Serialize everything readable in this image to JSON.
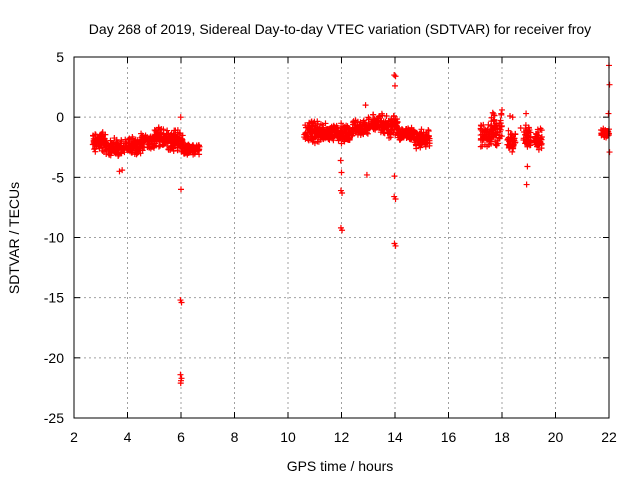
{
  "chart_data": {
    "type": "scatter",
    "title": "Day 268 of 2019, Sidereal Day-to-day VTEC variation (SDTVAR) for receiver froy",
    "xlabel": "GPS time / hours",
    "ylabel": "SDTVAR / TECUs",
    "xlim": [
      2,
      22
    ],
    "ylim": [
      -25,
      5
    ],
    "xticks": [
      "2",
      "4",
      "6",
      "8",
      "10",
      "12",
      "14",
      "16",
      "18",
      "20",
      "22"
    ],
    "yticks": [
      "5",
      "0",
      "-5",
      "-10",
      "-15",
      "-20",
      "-25"
    ],
    "grid": true,
    "marker": "+",
    "colors": {
      "points": "#ff0000",
      "grid": "#a0a0a0",
      "axes": "#000000"
    },
    "clusters": [
      {
        "x": [
          2.7,
          3.2
        ],
        "y": [
          -3.0,
          -1.2
        ]
      },
      {
        "x": [
          3.2,
          3.9
        ],
        "y": [
          -3.4,
          -1.7
        ]
      },
      {
        "x": [
          3.9,
          4.5
        ],
        "y": [
          -3.2,
          -1.6
        ]
      },
      {
        "x": [
          4.5,
          5.0
        ],
        "y": [
          -2.8,
          -1.2
        ]
      },
      {
        "x": [
          5.0,
          5.5
        ],
        "y": [
          -2.6,
          -0.7
        ]
      },
      {
        "x": [
          5.5,
          6.1
        ],
        "y": [
          -3.0,
          -1.0
        ]
      },
      {
        "x": [
          6.1,
          6.7
        ],
        "y": [
          -3.2,
          -2.2
        ]
      },
      {
        "x": [
          10.6,
          11.2
        ],
        "y": [
          -2.3,
          -0.1
        ]
      },
      {
        "x": [
          11.2,
          11.8
        ],
        "y": [
          -2.0,
          -0.5
        ]
      },
      {
        "x": [
          11.8,
          12.4
        ],
        "y": [
          -2.3,
          -0.3
        ]
      },
      {
        "x": [
          12.4,
          13.0
        ],
        "y": [
          -1.6,
          -0.2
        ]
      },
      {
        "x": [
          13.0,
          13.6
        ],
        "y": [
          -1.5,
          0.3
        ]
      },
      {
        "x": [
          13.6,
          14.1
        ],
        "y": [
          -1.8,
          0.3
        ]
      },
      {
        "x": [
          14.1,
          14.7
        ],
        "y": [
          -2.0,
          -0.8
        ]
      },
      {
        "x": [
          14.7,
          15.3
        ],
        "y": [
          -2.7,
          -0.9
        ]
      },
      {
        "x": [
          17.2,
          17.6
        ],
        "y": [
          -2.6,
          -0.4
        ]
      },
      {
        "x": [
          17.6,
          18.0
        ],
        "y": [
          -2.5,
          0.6
        ]
      },
      {
        "x": [
          18.2,
          18.5
        ],
        "y": [
          -3.0,
          -1.0
        ]
      },
      {
        "x": [
          18.8,
          19.1
        ],
        "y": [
          -2.8,
          -0.6
        ]
      },
      {
        "x": [
          19.2,
          19.5
        ],
        "y": [
          -3.0,
          -0.8
        ]
      },
      {
        "x": [
          21.7,
          22.0
        ],
        "y": [
          -1.8,
          -0.9
        ]
      }
    ],
    "points": [
      [
        3.7,
        -4.5
      ],
      [
        3.8,
        -4.4
      ],
      [
        5.99,
        0.0
      ],
      [
        6.0,
        -6.0
      ],
      [
        5.98,
        -15.2
      ],
      [
        6.02,
        -15.4
      ],
      [
        5.98,
        -21.4
      ],
      [
        6.02,
        -21.7
      ],
      [
        6.0,
        -21.9
      ],
      [
        5.99,
        -22.1
      ],
      [
        11.97,
        -3.6
      ],
      [
        12.0,
        -4.6
      ],
      [
        11.98,
        -6.1
      ],
      [
        12.02,
        -6.3
      ],
      [
        11.98,
        -9.2
      ],
      [
        12.02,
        -9.4
      ],
      [
        12.9,
        1.0
      ],
      [
        12.95,
        -4.8
      ],
      [
        13.97,
        3.5
      ],
      [
        14.02,
        3.4
      ],
      [
        14.0,
        2.6
      ],
      [
        13.98,
        -4.9
      ],
      [
        13.97,
        -6.6
      ],
      [
        14.02,
        -6.8
      ],
      [
        13.98,
        -10.5
      ],
      [
        14.02,
        -10.7
      ],
      [
        18.0,
        0.6
      ],
      [
        18.3,
        0.1
      ],
      [
        18.4,
        0.0
      ],
      [
        18.7,
        -0.9
      ],
      [
        18.9,
        0.3
      ],
      [
        18.95,
        -4.1
      ],
      [
        18.92,
        -5.6
      ],
      [
        22.0,
        4.3
      ],
      [
        22.02,
        2.7
      ],
      [
        21.98,
        0.3
      ],
      [
        22.0,
        -1.0
      ],
      [
        22.02,
        -2.9
      ]
    ]
  }
}
